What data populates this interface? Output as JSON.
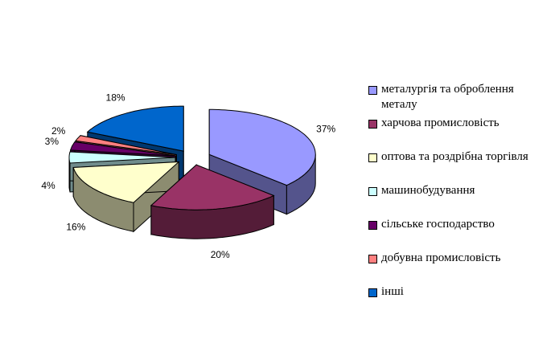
{
  "chart_data": {
    "type": "pie3d",
    "categories": [
      "металургія та оброблення металу",
      "харчова промисловість",
      "оптова та роздрібна торгівля",
      "машинобудування",
      "сільське господарство",
      "добувна промисловість",
      "інші"
    ],
    "values": [
      37,
      20,
      16,
      4,
      3,
      2,
      18
    ],
    "value_labels": [
      "37%",
      "20%",
      "16%",
      "4%",
      "3%",
      "2%",
      "18%"
    ],
    "colors": [
      "#9999ff",
      "#993366",
      "#ffffcc",
      "#ccffff",
      "#660066",
      "#ff8080",
      "#0066cc"
    ],
    "legend": "right"
  }
}
